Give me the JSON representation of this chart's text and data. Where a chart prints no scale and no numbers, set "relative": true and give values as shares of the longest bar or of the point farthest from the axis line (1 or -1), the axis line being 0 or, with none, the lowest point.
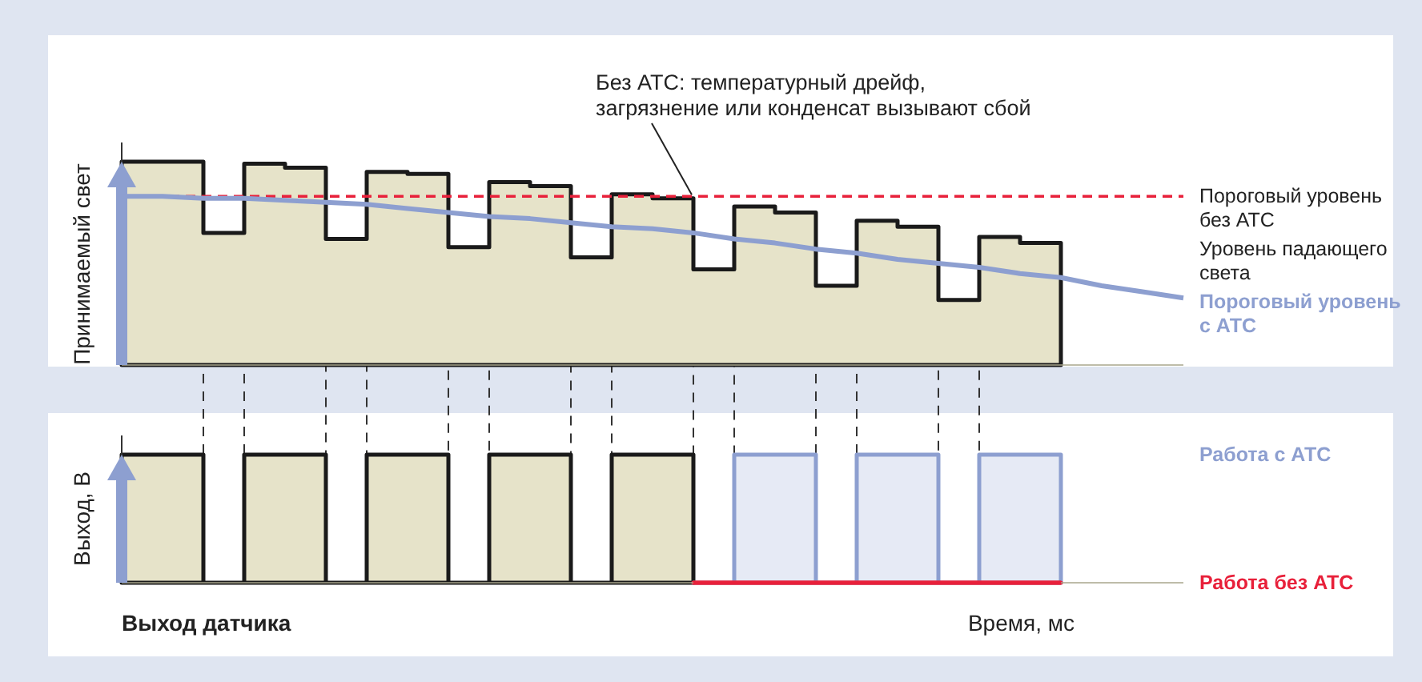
{
  "chart_data": [
    {
      "type": "step",
      "ylabel": "Принимаемый свет",
      "categories": [
        null,
        null,
        null,
        null,
        null,
        null,
        null,
        null,
        null,
        null,
        null,
        null,
        null,
        null,
        null,
        null,
        null,
        null,
        null,
        null,
        null,
        null,
        null,
        null,
        null,
        null,
        null
      ],
      "relative": true,
      "legend": "right",
      "series": [
        {
          "name": "Уровень падающего света",
          "type": "area",
          "color": "#1a1a1a",
          "values": [
            1.0,
            1.0,
            0.65,
            0.99,
            0.97,
            0.62,
            0.95,
            0.94,
            0.58,
            0.9,
            0.88,
            0.53,
            0.84,
            0.82,
            0.47,
            0.78,
            0.75,
            0.39,
            0.71,
            0.68,
            0.32,
            0.63,
            0.6,
            0.6,
            null,
            null,
            null
          ]
        },
        {
          "name": "Пороговый уровень с АТС",
          "type": "line",
          "color": "#8d9fd0",
          "values": [
            0.83,
            0.83,
            0.82,
            0.82,
            0.81,
            0.8,
            0.79,
            0.77,
            0.75,
            0.73,
            0.72,
            0.7,
            0.68,
            0.67,
            0.65,
            0.62,
            0.6,
            0.57,
            0.55,
            0.52,
            0.5,
            0.48,
            0.45,
            0.43,
            0.39,
            0.36,
            0.33
          ]
        }
      ],
      "ref_lines": [
        {
          "axis": "y",
          "value": 0.83,
          "label": "Пороговый уровень без АТС",
          "color": "#e8203a",
          "line_style": "dashed"
        }
      ],
      "grid": "x",
      "annotations": [
        "Без АТС: температурный дрейф, загрязнение или конденсат вызывают сбой"
      ]
    },
    {
      "type": "step",
      "title": "Выход датчика",
      "ylabel": "Выход, В",
      "xlabel": "Время, мс",
      "categories": [
        null,
        null,
        null,
        null,
        null,
        null,
        null,
        null,
        null,
        null,
        null,
        null,
        null,
        null,
        null,
        null,
        null,
        null,
        null,
        null,
        null,
        null,
        null,
        null,
        null,
        null,
        null
      ],
      "relative": true,
      "legend": "right",
      "series": [
        {
          "type": "area",
          "color": "#1a1a1a",
          "values": [
            1,
            1,
            0,
            1,
            1,
            0,
            1,
            1,
            0,
            1,
            1,
            0,
            1,
            1,
            0,
            null,
            null,
            null,
            null,
            null,
            null,
            null,
            null,
            null,
            null,
            null,
            null
          ]
        },
        {
          "name": "Работа с АТС",
          "type": "area",
          "color": "#8d9fd0",
          "values": [
            null,
            null,
            null,
            null,
            null,
            null,
            null,
            null,
            null,
            null,
            null,
            null,
            null,
            null,
            0,
            1,
            1,
            0,
            1,
            1,
            0,
            1,
            1,
            1,
            null,
            null,
            null
          ]
        },
        {
          "name": "Работа без АТС",
          "color": "#e8203a",
          "values": [
            null,
            null,
            null,
            null,
            null,
            null,
            null,
            null,
            null,
            null,
            null,
            null,
            null,
            null,
            0,
            0,
            0,
            0,
            0,
            0,
            0,
            0,
            0,
            0,
            null,
            null,
            null
          ]
        }
      ]
    }
  ]
}
